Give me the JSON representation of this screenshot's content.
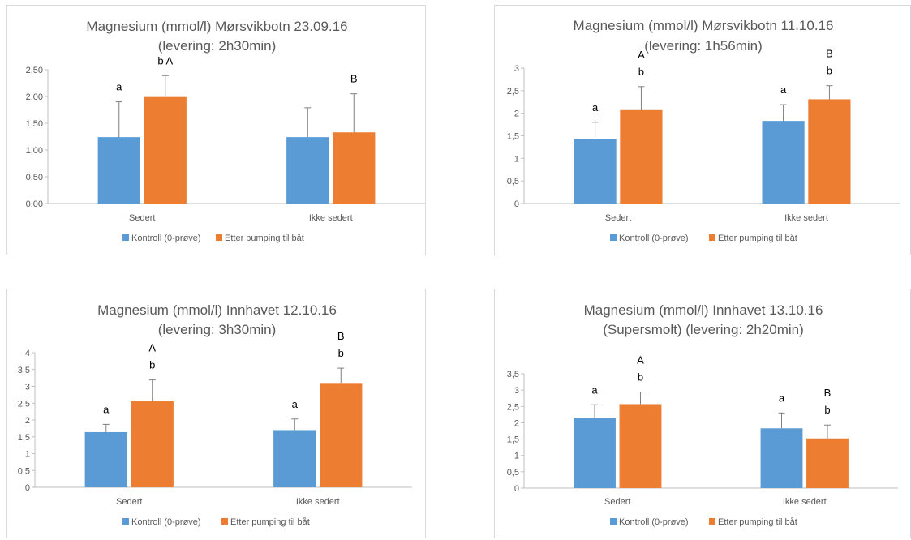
{
  "colors": {
    "kontroll": "#5B9BD5",
    "etter": "#ED7D31",
    "axis": "#bfbfbf",
    "errorbar": "#7f7f7f"
  },
  "legend_labels": [
    "Kontroll (0-prøve)",
    "Etter pumping til båt"
  ],
  "chart_data": [
    {
      "type": "bar",
      "title": [
        "Magnesium (mmol/l) Mørsvikbotn 23.09.16",
        "(levering: 2h30min)"
      ],
      "categories": [
        "Sedert",
        "Ikke sedert"
      ],
      "ylim": [
        0,
        2.5
      ],
      "yticks": [
        "0,00",
        "0,50",
        "1,00",
        "1,50",
        "2,00",
        "2,50"
      ],
      "series": [
        {
          "name": "Kontroll (0-prøve)",
          "values": [
            1.24,
            1.24
          ],
          "errors": [
            0.66,
            0.55
          ],
          "labels": [
            [
              "a"
            ],
            [
              ""
            ]
          ]
        },
        {
          "name": "Etter pumping til båt",
          "values": [
            1.99,
            1.33
          ],
          "errors": [
            0.4,
            0.72
          ],
          "labels": [
            [
              "b A"
            ],
            [
              "B"
            ]
          ]
        }
      ]
    },
    {
      "type": "bar",
      "title": [
        "Magnesium (mmol/l) Mørsvikbotn 11.10.16",
        "(levering: 1h56min)"
      ],
      "categories": [
        "Sedert",
        "Ikke sedert"
      ],
      "ylim": [
        0,
        3
      ],
      "yticks": [
        "0",
        "0,5",
        "1",
        "1,5",
        "2",
        "2,5",
        "3"
      ],
      "series": [
        {
          "name": "Kontroll (0-prøve)",
          "values": [
            1.42,
            1.83
          ],
          "errors": [
            0.38,
            0.36
          ],
          "labels": [
            [
              "a"
            ],
            [
              "a"
            ]
          ]
        },
        {
          "name": "Etter pumping til båt",
          "values": [
            2.07,
            2.31
          ],
          "errors": [
            0.52,
            0.3
          ],
          "labels": [
            [
              "A",
              "b"
            ],
            [
              "B",
              "b"
            ]
          ]
        }
      ]
    },
    {
      "type": "bar",
      "title": [
        "Magnesium (mmol/l) Innhavet 12.10.16",
        "(levering: 3h30min)"
      ],
      "categories": [
        "Sedert",
        "Ikke sedert"
      ],
      "ylim": [
        0,
        4
      ],
      "yticks": [
        "0",
        "0,5",
        "1",
        "1,5",
        "2",
        "2,5",
        "3",
        "3,5",
        "4"
      ],
      "series": [
        {
          "name": "Kontroll (0-prøve)",
          "values": [
            1.64,
            1.7
          ],
          "errors": [
            0.23,
            0.33
          ],
          "labels": [
            [
              "a"
            ],
            [
              "a"
            ]
          ]
        },
        {
          "name": "Etter pumping til båt",
          "values": [
            2.56,
            3.1
          ],
          "errors": [
            0.63,
            0.44
          ],
          "labels": [
            [
              "A",
              "b"
            ],
            [
              "B",
              "b"
            ]
          ]
        }
      ]
    },
    {
      "type": "bar",
      "title": [
        "Magnesium (mmol/l) Innhavet 13.10.16",
        "(Supersmolt) (levering: 2h20min)"
      ],
      "categories": [
        "Sedert",
        "Ikke sedert"
      ],
      "ylim": [
        0,
        3.5
      ],
      "yticks": [
        "0",
        "0,5",
        "1",
        "1,5",
        "2",
        "2,5",
        "3",
        "3,5"
      ],
      "series": [
        {
          "name": "Kontroll (0-prøve)",
          "values": [
            2.15,
            1.83
          ],
          "errors": [
            0.4,
            0.47
          ],
          "labels": [
            [
              "a"
            ],
            [
              "a"
            ]
          ]
        },
        {
          "name": "Etter pumping til båt",
          "values": [
            2.57,
            1.52
          ],
          "errors": [
            0.37,
            0.41
          ],
          "labels": [
            [
              "A",
              "b"
            ],
            [
              "B",
              "b"
            ]
          ]
        }
      ]
    }
  ]
}
